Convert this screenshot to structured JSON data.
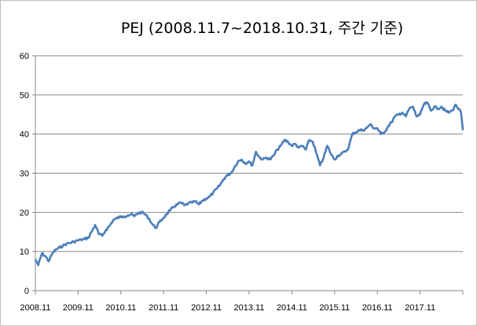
{
  "chart_data": {
    "type": "line",
    "title": "PEJ (2008.11.7~2018.10.31, 주간 기준)",
    "xlabel": "",
    "ylabel": "",
    "ylim": [
      0,
      60
    ],
    "yticks": [
      "0",
      "10",
      "20",
      "30",
      "40",
      "50",
      "60"
    ],
    "x_tick_labels": [
      "2008.11",
      "2009.11",
      "2010.11",
      "2011.11",
      "2012.11",
      "2013.11",
      "2014.11",
      "2015.11",
      "2016.11",
      "2017.11"
    ],
    "x_range": [
      "2008-11-07",
      "2018-10-31"
    ],
    "grid": "horizontal",
    "line_color": "#4a7ebb",
    "series": [
      {
        "x": [
          "2008-11-07",
          "2008-12-01",
          "2009-01-01",
          "2009-02-01",
          "2009-03-01",
          "2009-04-01",
          "2009-05-01",
          "2009-06-01",
          "2009-07-01",
          "2009-08-01",
          "2009-09-01",
          "2009-10-01",
          "2009-11-01",
          "2009-12-01",
          "2010-01-01",
          "2010-02-01",
          "2010-03-01",
          "2010-04-01",
          "2010-05-01",
          "2010-06-01",
          "2010-07-01",
          "2010-08-01",
          "2010-09-01",
          "2010-10-01",
          "2010-11-01",
          "2010-12-01",
          "2011-01-01",
          "2011-02-01",
          "2011-03-01",
          "2011-04-01",
          "2011-05-01",
          "2011-06-01",
          "2011-07-01",
          "2011-08-01",
          "2011-09-01",
          "2011-10-01",
          "2011-11-01",
          "2011-12-01",
          "2012-01-01",
          "2012-02-01",
          "2012-03-01",
          "2012-04-01",
          "2012-05-01",
          "2012-06-01",
          "2012-07-01",
          "2012-08-01",
          "2012-09-01",
          "2012-10-01",
          "2012-11-01",
          "2012-12-01",
          "2013-01-01",
          "2013-02-01",
          "2013-03-01",
          "2013-04-01",
          "2013-05-01",
          "2013-06-01",
          "2013-07-01",
          "2013-08-01",
          "2013-09-01",
          "2013-10-01",
          "2013-11-01",
          "2013-12-01",
          "2014-01-01",
          "2014-02-01",
          "2014-03-01",
          "2014-04-01",
          "2014-05-01",
          "2014-06-01",
          "2014-07-01",
          "2014-08-01",
          "2014-09-01",
          "2014-10-01",
          "2014-11-01",
          "2014-12-01",
          "2015-01-01",
          "2015-02-01",
          "2015-03-01",
          "2015-04-01",
          "2015-05-01",
          "2015-06-01",
          "2015-07-01",
          "2015-08-01",
          "2015-09-01",
          "2015-10-01",
          "2015-11-01",
          "2015-12-01",
          "2016-01-01",
          "2016-02-01",
          "2016-03-01",
          "2016-04-01",
          "2016-05-01",
          "2016-06-01",
          "2016-07-01",
          "2016-08-01",
          "2016-09-01",
          "2016-10-01",
          "2016-11-01",
          "2016-12-01",
          "2017-01-01",
          "2017-02-01",
          "2017-03-01",
          "2017-04-01",
          "2017-05-01",
          "2017-06-01",
          "2017-07-01",
          "2017-08-01",
          "2017-09-01",
          "2017-10-01",
          "2017-11-01",
          "2017-12-01",
          "2018-01-01",
          "2018-02-01",
          "2018-03-01",
          "2018-04-01",
          "2018-05-01",
          "2018-06-01",
          "2018-07-01",
          "2018-08-01",
          "2018-09-01",
          "2018-10-15",
          "2018-10-31"
        ],
        "values": [
          8.0,
          6.5,
          9.5,
          8.8,
          7.5,
          9.5,
          10.5,
          11.0,
          11.5,
          12.0,
          12.2,
          12.5,
          12.8,
          13.0,
          13.2,
          13.5,
          15.0,
          16.8,
          14.5,
          14.0,
          15.5,
          16.5,
          18.0,
          18.5,
          18.8,
          19.0,
          19.2,
          19.5,
          19.0,
          19.8,
          20.0,
          19.5,
          18.5,
          17.0,
          16.0,
          17.5,
          18.5,
          19.5,
          20.5,
          21.5,
          22.0,
          22.5,
          21.8,
          22.2,
          22.5,
          22.8,
          22.0,
          23.0,
          23.5,
          24.0,
          25.0,
          26.0,
          27.0,
          28.5,
          29.5,
          30.0,
          31.5,
          33.0,
          33.5,
          32.5,
          33.0,
          32.0,
          35.5,
          34.0,
          33.5,
          34.0,
          33.5,
          34.5,
          36.0,
          37.0,
          38.5,
          38.0,
          37.0,
          37.5,
          36.5,
          37.0,
          36.0,
          38.5,
          38.0,
          35.0,
          32.0,
          34.0,
          37.0,
          35.0,
          33.5,
          34.5,
          35.0,
          35.5,
          36.5,
          40.0,
          40.5,
          41.0,
          41.0,
          41.5,
          42.5,
          41.5,
          41.5,
          40.0,
          40.5,
          42.0,
          43.0,
          44.5,
          45.0,
          45.5,
          44.5,
          46.5,
          47.0,
          44.5,
          45.0,
          47.5,
          48.0,
          46.0,
          47.0,
          46.5,
          47.0,
          46.0,
          45.5,
          46.0,
          47.5,
          45.5,
          41.0
        ]
      }
    ]
  }
}
